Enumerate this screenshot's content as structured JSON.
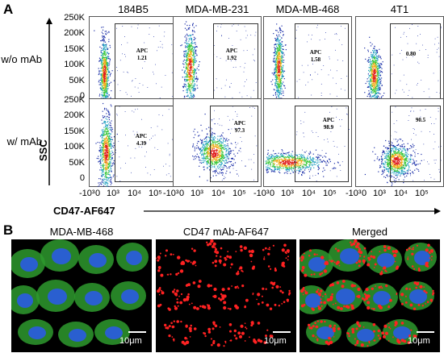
{
  "panel_a": {
    "letter": "A",
    "columns": [
      "184B5",
      "MDA-MB-231",
      "MDA-MB-468",
      "4T1"
    ],
    "rows": [
      {
        "label": "w/o mAb",
        "gates": [
          {
            "line1": "APC",
            "line2": "1.21"
          },
          {
            "line1": "APC",
            "line2": "1.92"
          },
          {
            "line1": "APC",
            "line2": "1.58"
          },
          {
            "line1": "",
            "line2": "0.80"
          }
        ]
      },
      {
        "label": "w/ mAb",
        "gates": [
          {
            "line1": "APC",
            "line2": "4.39"
          },
          {
            "line1": "APC",
            "line2": "97.3"
          },
          {
            "line1": "APC",
            "line2": "98.9"
          },
          {
            "line1": "",
            "line2": "90.5"
          }
        ]
      }
    ],
    "y_ticks": [
      "250K",
      "200K",
      "150K",
      "100K",
      "50K",
      "0"
    ],
    "x_ticks": [
      "-10³",
      "0",
      "10³",
      "10⁴",
      "10⁵"
    ],
    "y_axis_title": "SSC",
    "x_axis_title": "CD47-AF647"
  },
  "panel_b": {
    "letter": "B",
    "titles": [
      "MDA-MB-468",
      "CD47 mAb-AF647",
      "Merged"
    ],
    "scale_label": "10μm"
  },
  "colors": {
    "dense": "#e01e1e",
    "mid": "#3cc83c",
    "sparse": "#1b2ea8",
    "green_cell": "#2e9a2e",
    "nucleus": "#2a5fd0",
    "red_dot": "#ff2222"
  }
}
